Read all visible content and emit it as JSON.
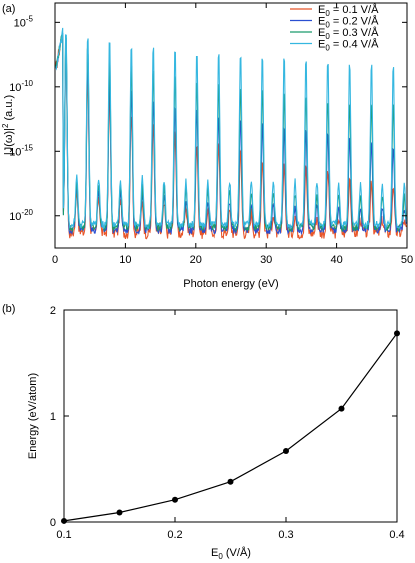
{
  "chart_data": [
    {
      "panel_label": "(a)",
      "type": "line",
      "xlabel": "Photon energy (eV)",
      "ylabel": "|J(ω)|² (a.u.)",
      "ylabel_parts": {
        "main": "|J(ω)|",
        "sup": "2",
        "rest": " (a.u.)"
      },
      "xlim": [
        0,
        50
      ],
      "ylim_log10": [
        -22.5,
        -3.5
      ],
      "yscale": "log",
      "x_ticks": [
        "0",
        "10",
        "20",
        "30",
        "40",
        "50"
      ],
      "y_ticks": [
        {
          "base": "10",
          "exp": "-5",
          "log": -5
        },
        {
          "base": "10",
          "exp": "-10",
          "log": -10
        },
        {
          "base": "10",
          "exp": "-15",
          "log": -15
        },
        {
          "base": "10",
          "exp": "-20",
          "log": -20
        }
      ],
      "grid": false,
      "legend_position": "top-right",
      "series": [
        {
          "name": "E₀ = 0.1 V/Å",
          "name_parts": {
            "pre": "E",
            "sub": "0",
            "post": " = 0.1 V/Å"
          },
          "color": "#e8562a",
          "amp": 0.1
        },
        {
          "name": "E₀ = 0.2 V/Å",
          "name_parts": {
            "pre": "E",
            "sub": "0",
            "post": " = 0.2 V/Å"
          },
          "color": "#2a4fd1",
          "amp": 0.2
        },
        {
          "name": "E₀ = 0.3 V/Å",
          "name_parts": {
            "pre": "E",
            "sub": "0",
            "post": " = 0.3 V/Å"
          },
          "color": "#1a9a6c",
          "amp": 0.3
        },
        {
          "name": "E₀ = 0.4 V/Å",
          "name_parts": {
            "pre": "E",
            "sub": "0",
            "post": " = 0.4 V/Å"
          },
          "color": "#35b7e0",
          "amp": 0.4
        }
      ]
    },
    {
      "panel_label": "(b)",
      "type": "line",
      "xlabel": "E₀ (V/Å)",
      "xlabel_parts": {
        "pre": "E",
        "sub": "0",
        "post": " (V/Å)"
      },
      "ylabel": "Energy (eV/atom)",
      "xlim": [
        0.1,
        0.4
      ],
      "ylim": [
        0,
        2
      ],
      "x_ticks": [
        "0.1",
        "0.2",
        "0.3",
        "0.4"
      ],
      "y_ticks": [
        "0",
        "1",
        "2"
      ],
      "grid": false,
      "x": [
        0.1,
        0.15,
        0.2,
        0.25,
        0.3,
        0.35,
        0.4
      ],
      "y": [
        0.01,
        0.09,
        0.21,
        0.38,
        0.67,
        1.07,
        1.78
      ],
      "color": "#000000",
      "marker": "circle"
    }
  ]
}
